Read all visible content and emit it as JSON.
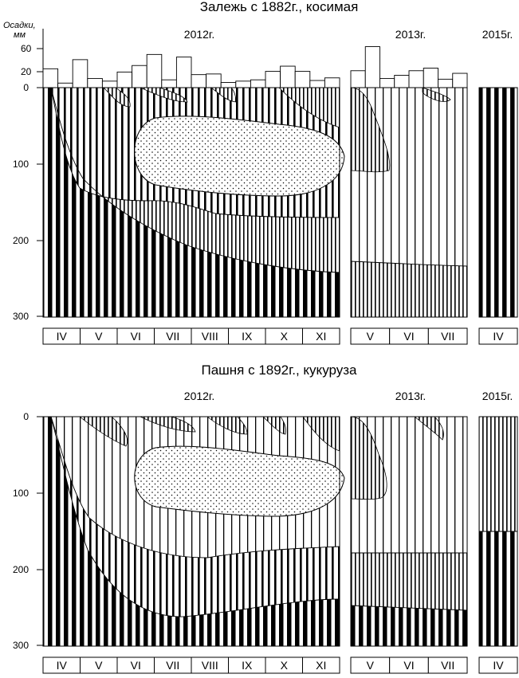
{
  "panels": [
    {
      "title": "Залежь с 1882г., косимая",
      "year_labels": [
        "2012г.",
        "2013г.",
        "2015г."
      ],
      "precip_axis_label": [
        "Осадки,",
        "мм"
      ],
      "precip_ticks": [
        60,
        20
      ],
      "depth_ticks": [
        0,
        100,
        200,
        300
      ],
      "month_groups": [
        [
          "IV",
          "V",
          "VI",
          "VII",
          "VIII",
          "IX",
          "X",
          "XI"
        ],
        [
          "V",
          "VI",
          "VII"
        ],
        [
          "IV"
        ]
      ],
      "precipitation_mm": {
        "2012": [
          29,
          7,
          43,
          14,
          10,
          24,
          34,
          51,
          12,
          47,
          20,
          21,
          8,
          10,
          12,
          25,
          33,
          25,
          11,
          15
        ],
        "2013": [
          26,
          63,
          14,
          19,
          26,
          30,
          13,
          22
        ]
      }
    },
    {
      "title": "Пашня с 1892г., кукуруза",
      "year_labels": [
        "2012г.",
        "2013г.",
        "2015г."
      ],
      "depth_ticks": [
        0,
        100,
        200,
        300
      ],
      "month_groups": [
        [
          "IV",
          "V",
          "VI",
          "VII",
          "VIII",
          "IX",
          "X",
          "XI"
        ],
        [
          "V",
          "VI",
          "VII"
        ],
        [
          "IV"
        ]
      ]
    }
  ]
}
